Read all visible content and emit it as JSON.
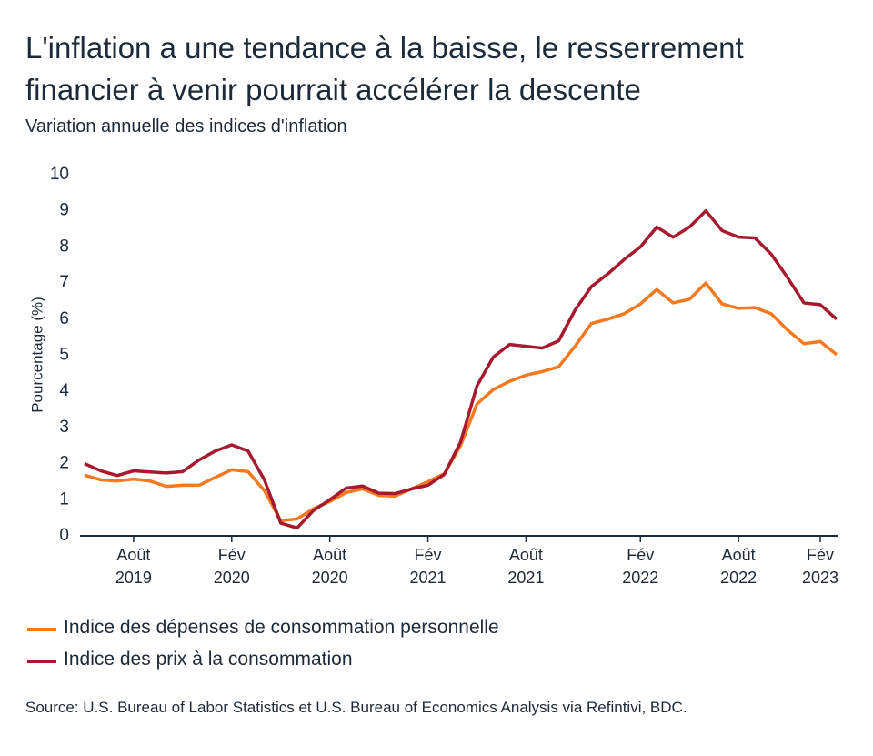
{
  "chart_data": {
    "type": "line",
    "title": "L'inflation a une tendance à la baisse, le resserrement\nfinancier à venir pourrait accélérer la descente",
    "subtitle": "Variation annuelle des indices d'inflation",
    "y_label": "Pourcentage (%)",
    "source": "Source: U.S. Bureau of Labor Statistics et U.S. Bureau of Economics Analysis via Refintivi, BDC.",
    "categories": [
      null,
      null,
      null,
      "Août\n2019",
      null,
      null,
      null,
      null,
      null,
      "Fév\n2020",
      null,
      null,
      null,
      null,
      null,
      "Août\n2020",
      null,
      null,
      null,
      null,
      null,
      "Fév\n2021",
      null,
      null,
      null,
      null,
      null,
      "Août\n2021",
      null,
      null,
      null,
      null,
      null,
      null,
      "Fév\n2022",
      null,
      null,
      null,
      null,
      null,
      "Août\n2022",
      null,
      null,
      null,
      null,
      "Fév\n2023",
      null
    ],
    "series": [
      {
        "name": "Indice des dépenses de consommation personnelle",
        "color": "#f47920",
        "values": [
          1.68,
          1.55,
          1.52,
          1.57,
          1.52,
          1.37,
          1.4,
          1.4,
          1.62,
          1.83,
          1.78,
          1.25,
          0.42,
          0.47,
          0.75,
          0.95,
          1.2,
          1.3,
          1.12,
          1.1,
          1.3,
          1.5,
          1.72,
          2.5,
          3.65,
          4.05,
          4.28,
          4.45,
          4.55,
          4.68,
          5.25,
          5.88,
          6.0,
          6.15,
          6.42,
          6.82,
          6.45,
          6.55,
          7.0,
          6.42,
          6.3,
          6.32,
          6.15,
          5.7,
          5.32,
          5.38,
          5.02
        ]
      },
      {
        "name": "Indice des prix à la consommation",
        "color": "#a6192e",
        "values": [
          2.0,
          1.8,
          1.67,
          1.8,
          1.77,
          1.74,
          1.78,
          2.1,
          2.35,
          2.52,
          2.35,
          1.55,
          0.35,
          0.22,
          0.7,
          1.0,
          1.32,
          1.38,
          1.18,
          1.17,
          1.3,
          1.4,
          1.7,
          2.6,
          4.15,
          4.95,
          5.3,
          5.25,
          5.2,
          5.4,
          6.25,
          6.9,
          7.25,
          7.65,
          8.0,
          8.55,
          8.27,
          8.55,
          9.0,
          8.45,
          8.27,
          8.25,
          7.8,
          7.15,
          6.45,
          6.4,
          6.0
        ]
      }
    ],
    "ylim": [
      0,
      10
    ],
    "yticks": [
      0,
      1,
      2,
      3,
      4,
      5,
      6,
      7,
      8,
      9,
      10
    ],
    "grid": false
  }
}
